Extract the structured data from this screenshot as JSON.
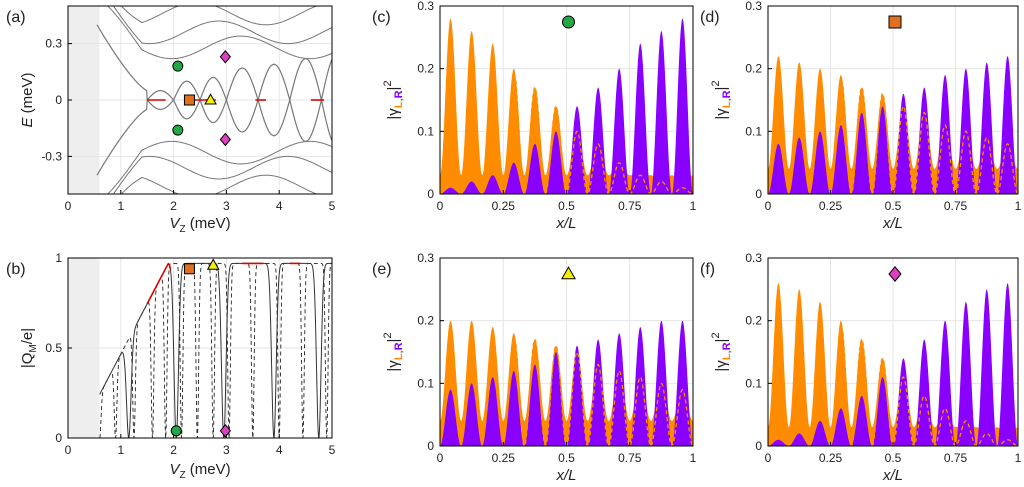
{
  "colors": {
    "left": "#ff8c00",
    "right": "#8a00ff",
    "gray_line": "#777777",
    "red": "#e00000",
    "circle": "#22a844",
    "square": "#e07020",
    "triangle": "#f6f000",
    "diamond": "#e040c0",
    "shade": "#eeeeee"
  },
  "chart_data": [
    {
      "id": "a",
      "type": "line",
      "panel_label": "(a)",
      "xlabel_main": "V",
      "xlabel_sub": "Z",
      "xlabel_unit": " (meV)",
      "ylabel_main": "E",
      "ylabel_unit": " (meV)",
      "xlim": [
        0,
        5
      ],
      "ylim": [
        -0.5,
        0.5
      ],
      "xticks": [
        0,
        1,
        2,
        3,
        4,
        5
      ],
      "xtick_labels": [
        "0",
        "1",
        "2",
        "3",
        "4",
        "5"
      ],
      "yticks": [
        0.3,
        0,
        -0.3
      ],
      "ytick_labels": [
        "0.3",
        "0",
        "-0.3"
      ],
      "shaded_x": [
        0,
        0.6
      ],
      "oscillation": {
        "crossings": [
          1.5,
          2.0,
          2.5,
          3.0,
          3.6,
          4.2,
          4.8
        ],
        "amplitudes": [
          0.05,
          0.1,
          0.12,
          0.17,
          0.19,
          0.22,
          0.25
        ]
      },
      "red_segments_x": [
        [
          1.5,
          1.85
        ],
        [
          2.4,
          2.8
        ],
        [
          3.55,
          3.75
        ],
        [
          4.6,
          4.85
        ]
      ],
      "markers": [
        {
          "shape": "circle",
          "x": 2.08,
          "y": 0.18
        },
        {
          "shape": "circle",
          "x": 2.08,
          "y": -0.16
        },
        {
          "shape": "square",
          "x": 2.3,
          "y": 0.0
        },
        {
          "shape": "triangle",
          "x": 2.7,
          "y": 0.0
        },
        {
          "shape": "diamond",
          "x": 2.98,
          "y": 0.23
        },
        {
          "shape": "diamond",
          "x": 2.98,
          "y": -0.21
        }
      ]
    },
    {
      "id": "b",
      "type": "line",
      "panel_label": "(b)",
      "xlabel_main": "V",
      "xlabel_sub": "Z",
      "xlabel_unit": " (meV)",
      "ylabel_main": "|Q",
      "ylabel_sub": "M",
      "ylabel_unit": "/e|",
      "xlim": [
        0,
        5
      ],
      "ylim": [
        0,
        1
      ],
      "xticks": [
        0,
        1,
        2,
        3,
        4,
        5
      ],
      "xtick_labels": [
        "0",
        "1",
        "2",
        "3",
        "4",
        "5"
      ],
      "yticks": [
        0,
        0.5,
        1
      ],
      "ytick_labels": [
        "0",
        "0.5",
        "1"
      ],
      "shaded_x": [
        0,
        0.6
      ],
      "solid_dips": [
        1.15,
        2.05,
        2.95,
        3.9,
        4.75
      ],
      "dashed_dips": [
        0.6,
        0.9,
        1.25,
        1.6,
        1.85,
        2.15,
        2.45,
        2.75,
        3.05,
        3.5,
        4.0,
        4.45,
        4.9
      ],
      "red_segments_x": [
        [
          1.5,
          1.95
        ],
        [
          3.3,
          3.7
        ],
        [
          4.2,
          4.4
        ]
      ],
      "markers": [
        {
          "shape": "square",
          "x": 2.3,
          "y": 0.94
        },
        {
          "shape": "triangle",
          "x": 2.75,
          "y": 0.96
        },
        {
          "shape": "circle",
          "x": 2.05,
          "y": 0.04
        },
        {
          "shape": "diamond",
          "x": 2.98,
          "y": 0.04
        }
      ]
    },
    {
      "id": "c",
      "type": "area",
      "panel_label": "(c)",
      "xlabel": "x/L",
      "ylabel_prefix": "|γ",
      "ylabel_L": "L",
      "ylabel_comma": ",",
      "ylabel_R": "R",
      "ylabel_suffix": "|",
      "ylabel_power": "2",
      "xlim": [
        0,
        1
      ],
      "ylim": [
        0,
        0.3
      ],
      "xticks": [
        0,
        0.25,
        0.5,
        0.75,
        1
      ],
      "xtick_labels": [
        "0",
        "0.25",
        "0.5",
        "0.75",
        "1"
      ],
      "yticks": [
        0,
        0.1,
        0.2,
        0.3
      ],
      "ytick_labels": [
        "0",
        "0.1",
        "0.2",
        "0.3"
      ],
      "marker": "circle",
      "peaks": 12,
      "left_peak_heights": [
        0.28,
        0.26,
        0.24,
        0.2,
        0.17,
        0.14,
        0.1,
        0.08,
        0.05,
        0.03,
        0.02,
        0.01
      ],
      "left_decay": 0.16,
      "left_floor": 0.03,
      "right_peak_heights": [
        0.01,
        0.02,
        0.03,
        0.05,
        0.08,
        0.1,
        0.14,
        0.17,
        0.2,
        0.24,
        0.26,
        0.28
      ],
      "right_floor": 0.0
    },
    {
      "id": "d",
      "type": "area",
      "panel_label": "(d)",
      "xlabel": "x/L",
      "ylabel_prefix": "|γ",
      "ylabel_L": "L",
      "ylabel_comma": ",",
      "ylabel_R": "R",
      "ylabel_suffix": "|",
      "ylabel_power": "2",
      "xlim": [
        0,
        1
      ],
      "ylim": [
        0,
        0.3
      ],
      "xticks": [
        0,
        0.25,
        0.5,
        0.75,
        1
      ],
      "xtick_labels": [
        "0",
        "0.25",
        "0.5",
        "0.75",
        "1"
      ],
      "yticks": [
        0,
        0.1,
        0.2,
        0.3
      ],
      "ytick_labels": [
        "0",
        "0.1",
        "0.2",
        "0.3"
      ],
      "marker": "square",
      "peaks": 12,
      "left_peak_heights": [
        0.22,
        0.21,
        0.2,
        0.19,
        0.17,
        0.16,
        0.14,
        0.13,
        0.11,
        0.1,
        0.09,
        0.08
      ],
      "left_decay": 0.0,
      "left_floor": 0.04,
      "right_peak_heights": [
        0.08,
        0.09,
        0.1,
        0.11,
        0.13,
        0.14,
        0.16,
        0.17,
        0.19,
        0.2,
        0.21,
        0.22
      ],
      "right_floor": 0.0
    },
    {
      "id": "e",
      "type": "area",
      "panel_label": "(e)",
      "xlabel": "x/L",
      "ylabel_prefix": "|γ",
      "ylabel_L": "L",
      "ylabel_comma": ",",
      "ylabel_R": "R",
      "ylabel_suffix": "|",
      "ylabel_power": "2",
      "xlim": [
        0,
        1
      ],
      "ylim": [
        0,
        0.3
      ],
      "xticks": [
        0,
        0.25,
        0.5,
        0.75,
        1
      ],
      "xtick_labels": [
        "0",
        "0.25",
        "0.5",
        "0.75",
        "1"
      ],
      "yticks": [
        0,
        0.1,
        0.2,
        0.3
      ],
      "ytick_labels": [
        "0",
        "0.1",
        "0.2",
        "0.3"
      ],
      "marker": "triangle",
      "peaks": 12,
      "left_peak_heights": [
        0.2,
        0.2,
        0.19,
        0.18,
        0.17,
        0.16,
        0.15,
        0.13,
        0.12,
        0.11,
        0.1,
        0.09
      ],
      "left_decay": 0.0,
      "left_floor": 0.04,
      "right_peak_heights": [
        0.09,
        0.1,
        0.11,
        0.12,
        0.13,
        0.15,
        0.16,
        0.17,
        0.18,
        0.19,
        0.2,
        0.2
      ],
      "right_floor": 0.0
    },
    {
      "id": "f",
      "type": "area",
      "panel_label": "(f)",
      "xlabel": "x/L",
      "ylabel_prefix": "|γ",
      "ylabel_L": "L",
      "ylabel_comma": ",",
      "ylabel_R": "R",
      "ylabel_suffix": "|",
      "ylabel_power": "2",
      "xlim": [
        0,
        1
      ],
      "ylim": [
        0,
        0.3
      ],
      "xticks": [
        0,
        0.25,
        0.5,
        0.75,
        1
      ],
      "xtick_labels": [
        "0",
        "0.25",
        "0.5",
        "0.75",
        "1"
      ],
      "yticks": [
        0,
        0.1,
        0.2,
        0.3
      ],
      "ytick_labels": [
        "0",
        "0.1",
        "0.2",
        "0.3"
      ],
      "marker": "diamond",
      "peaks": 12,
      "left_peak_heights": [
        0.26,
        0.25,
        0.23,
        0.2,
        0.17,
        0.14,
        0.11,
        0.08,
        0.06,
        0.04,
        0.02,
        0.01
      ],
      "left_decay": 0.14,
      "left_floor": 0.03,
      "right_peak_heights": [
        0.01,
        0.02,
        0.04,
        0.06,
        0.08,
        0.11,
        0.14,
        0.17,
        0.2,
        0.23,
        0.25,
        0.26
      ],
      "right_floor": 0.0
    }
  ]
}
